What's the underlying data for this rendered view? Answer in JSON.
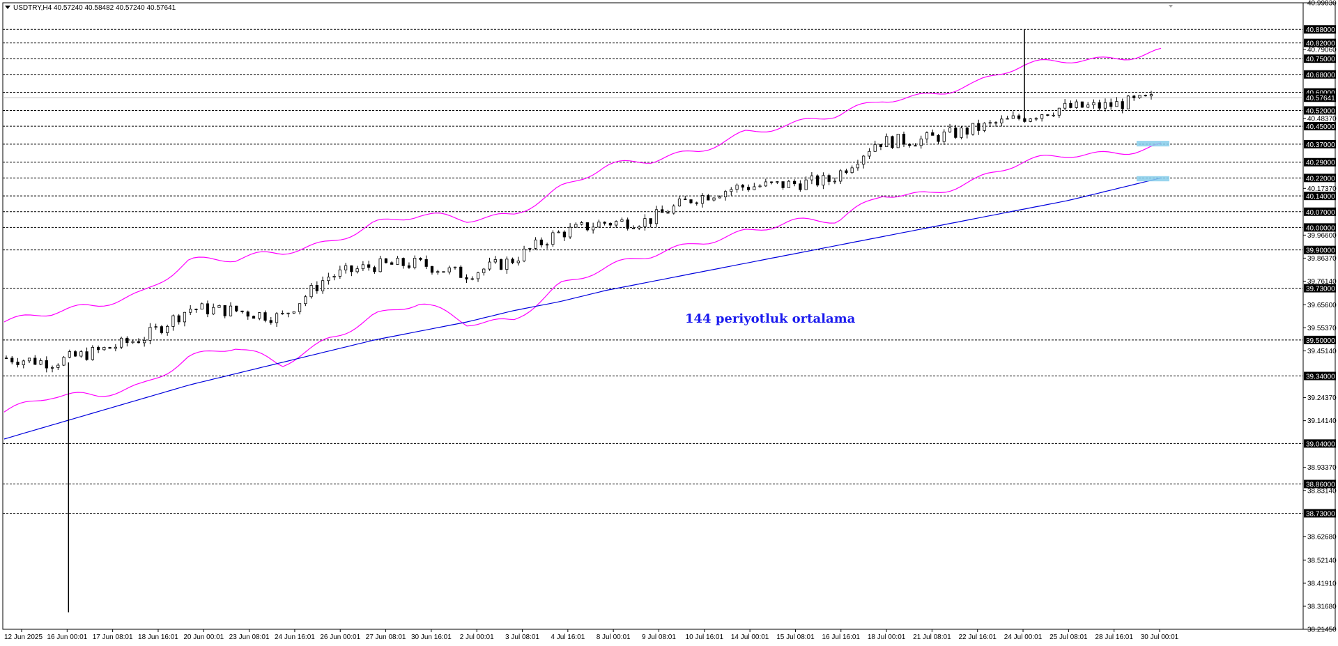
{
  "header": {
    "symbol_timeframe": "USDTRY,H4",
    "ohlc": "40.57240 40.58482 40.57240 40.57641"
  },
  "annotation": {
    "text": "144 periyotluk ortalama"
  },
  "colors": {
    "background": "#ffffff",
    "candle": "#000000",
    "envelope": "#ff00ff",
    "moving_average": "#0000dd",
    "highlight": "#87ceeb",
    "level_line": "#000000"
  },
  "chart_data": {
    "type": "candlestick",
    "symbol": "USDTRY",
    "timeframe": "H4",
    "ylim": [
      38.2145,
      40.9983
    ],
    "grid": false,
    "y_axis_ticks": [
      "40.99830",
      "40.79060",
      "40.48370",
      "40.17370",
      "39.96600",
      "39.86370",
      "39.76140",
      "39.65600",
      "39.55370",
      "39.45140",
      "39.24370",
      "39.14140",
      "38.93370",
      "38.83140",
      "38.62680",
      "38.52140",
      "38.41910",
      "38.31680",
      "38.21450"
    ],
    "horizontal_levels": [
      "40.88000",
      "40.82000",
      "40.75000",
      "40.68000",
      "40.60000",
      "40.52000",
      "40.45000",
      "40.37000",
      "40.29000",
      "40.22000",
      "40.14000",
      "40.07000",
      "40.00000",
      "39.90000",
      "39.73000",
      "39.50000",
      "39.34000",
      "39.04000",
      "38.86000",
      "38.73000"
    ],
    "current_price": "40.57641",
    "x_tick_labels": [
      "12 Jun 2025",
      "16 Jun 00:01",
      "17 Jun 08:01",
      "18 Jun 16:01",
      "20 Jun 00:01",
      "23 Jun 08:01",
      "24 Jun 16:01",
      "26 Jun 00:01",
      "27 Jun 08:01",
      "30 Jun 16:01",
      "2 Jul 00:01",
      "3 Jul 08:01",
      "4 Jul 16:01",
      "8 Jul 00:01",
      "9 Jul 08:01",
      "10 Jul 16:01",
      "14 Jul 00:01",
      "15 Jul 08:01",
      "16 Jul 16:01",
      "18 Jul 00:01",
      "21 Jul 08:01",
      "22 Jul 16:01",
      "24 Jul 00:01",
      "25 Jul 08:01",
      "28 Jul 16:01",
      "30 Jul 00:01"
    ],
    "close_series_anchors": [
      {
        "x": "12 Jun 2025",
        "close": 39.42
      },
      {
        "x": "16 Jun 00:01",
        "close": 39.4
      },
      {
        "x": "17 Jun 08:01",
        "close": 39.45
      },
      {
        "x": "18 Jun 16:01",
        "close": 39.51
      },
      {
        "x": "20 Jun 00:01",
        "close": 39.64
      },
      {
        "x": "23 Jun 08:01",
        "close": 39.63
      },
      {
        "x": "24 Jun 16:01",
        "close": 39.6
      },
      {
        "x": "26 Jun 00:01",
        "close": 39.78
      },
      {
        "x": "27 Jun 08:01",
        "close": 39.83
      },
      {
        "x": "30 Jun 16:01",
        "close": 39.84
      },
      {
        "x": "2 Jul 00:01",
        "close": 39.79
      },
      {
        "x": "3 Jul 08:01",
        "close": 39.85
      },
      {
        "x": "4 Jul 16:01",
        "close": 39.97
      },
      {
        "x": "8 Jul 00:01",
        "close": 40.02
      },
      {
        "x": "9 Jul 08:01",
        "close": 40.03
      },
      {
        "x": "10 Jul 16:01",
        "close": 40.13
      },
      {
        "x": "14 Jul 00:01",
        "close": 40.18
      },
      {
        "x": "15 Jul 08:01",
        "close": 40.19
      },
      {
        "x": "16 Jul 16:01",
        "close": 40.21
      },
      {
        "x": "18 Jul 00:01",
        "close": 40.38
      },
      {
        "x": "21 Jul 08:01",
        "close": 40.39
      },
      {
        "x": "22 Jul 16:01",
        "close": 40.43
      },
      {
        "x": "24 Jul 00:01",
        "close": 40.48
      },
      {
        "x": "25 Jul 08:01",
        "close": 40.53
      },
      {
        "x": "28 Jul 16:01",
        "close": 40.54
      },
      {
        "x": "30 Jul 00:01",
        "close": 40.57
      }
    ],
    "series": [
      {
        "name": "",
        "style": "envelope-upper",
        "values": [
          39.58,
          39.6,
          39.65,
          39.73,
          39.86,
          39.84,
          39.88,
          39.95,
          40.03,
          40.04,
          40.02,
          40.07,
          40.19,
          40.26,
          40.28,
          40.35,
          40.44,
          40.45,
          40.48,
          40.57,
          40.61,
          40.64,
          40.7,
          40.74,
          40.77,
          40.79
        ]
      },
      {
        "name": "",
        "style": "envelope-lower",
        "values": [
          39.18,
          39.23,
          39.25,
          39.32,
          39.43,
          39.45,
          39.38,
          39.52,
          39.62,
          39.65,
          39.56,
          39.6,
          39.76,
          39.81,
          39.86,
          39.94,
          40.0,
          40.02,
          40.01,
          40.15,
          40.17,
          40.21,
          40.27,
          40.32,
          40.35,
          40.37
        ]
      },
      {
        "name": "",
        "style": "moving-average-144",
        "values": [
          39.06,
          39.12,
          39.18,
          39.24,
          39.3,
          39.35,
          39.4,
          39.45,
          39.5,
          39.54,
          39.58,
          39.63,
          39.67,
          39.72,
          39.76,
          39.8,
          39.84,
          39.88,
          39.92,
          39.96,
          40.0,
          40.04,
          40.08,
          40.12,
          40.17,
          40.22
        ]
      }
    ],
    "special_wicks": [
      {
        "x": "16 Jun 00:01",
        "low": 38.29
      },
      {
        "x": "24 Jul 00:01",
        "high": 40.88
      }
    ],
    "highlight_boxes": [
      {
        "x": "30 Jul 00:01",
        "y_range": [
          40.36,
          40.385
        ]
      },
      {
        "x": "30 Jul 00:01",
        "y_range": [
          40.205,
          40.228
        ]
      }
    ]
  }
}
